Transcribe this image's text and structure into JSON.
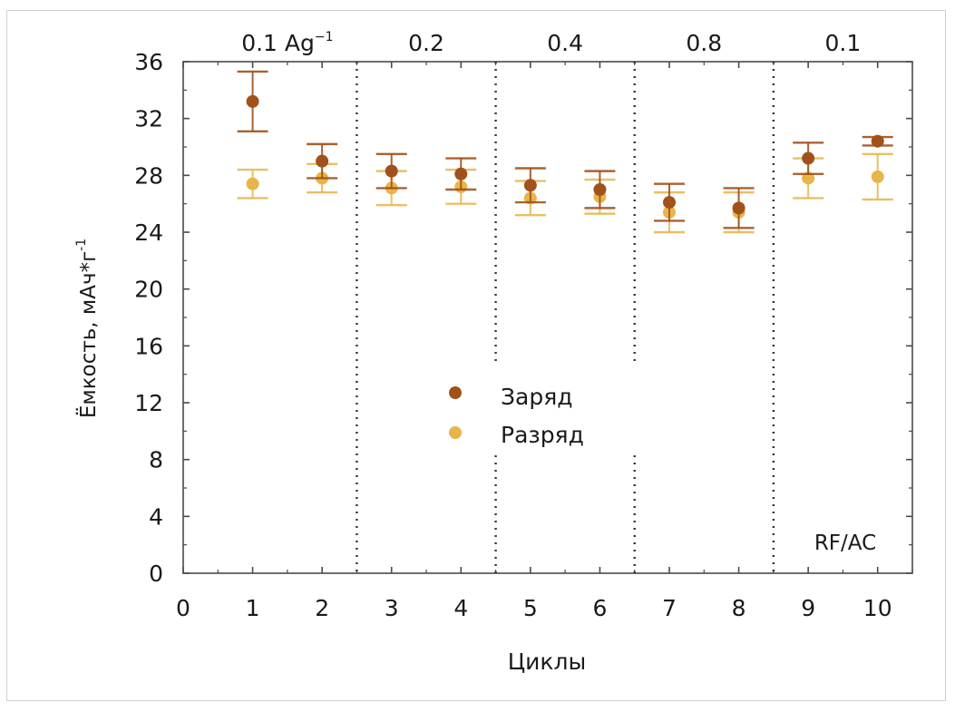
{
  "chart_data": {
    "type": "scatter",
    "xlabel": "Циклы",
    "ylabel": "Ёмкость, мАч*г",
    "ylabel_sup": "-1",
    "xlim": [
      0,
      10.5
    ],
    "ylim": [
      0,
      36
    ],
    "xticks": [
      "0",
      "1",
      "2",
      "3",
      "4",
      "5",
      "6",
      "7",
      "8",
      "9",
      "10"
    ],
    "yticks": [
      "0",
      "4",
      "8",
      "12",
      "16",
      "20",
      "24",
      "28",
      "32",
      "36"
    ],
    "segments": [
      {
        "label": "0.1 Ag",
        "sup": "−1",
        "center": 1.5
      },
      {
        "label": "0.2",
        "center": 3.5
      },
      {
        "label": "0.4",
        "center": 5.5
      },
      {
        "label": "0.8",
        "center": 7.5
      },
      {
        "label": "0.1",
        "center": 9.5
      }
    ],
    "dividers": [
      2.5,
      4.5,
      6.5,
      8.5
    ],
    "annotation": "RF/AC",
    "series": [
      {
        "name": "Заряд",
        "color": "#a0521a",
        "x": [
          1,
          2,
          3,
          4,
          5,
          6,
          7,
          8,
          9,
          10
        ],
        "y": [
          33.2,
          29.0,
          28.3,
          28.1,
          27.3,
          27.0,
          26.1,
          25.7,
          29.2,
          30.4
        ],
        "err": [
          2.1,
          1.2,
          1.2,
          1.1,
          1.2,
          1.3,
          1.3,
          1.4,
          1.1,
          0.3
        ]
      },
      {
        "name": "Разряд",
        "color": "#e8b54a",
        "x": [
          1,
          2,
          3,
          4,
          5,
          6,
          7,
          8,
          9,
          10
        ],
        "y": [
          27.4,
          27.8,
          27.1,
          27.2,
          26.4,
          26.5,
          25.4,
          25.4,
          27.8,
          27.9
        ],
        "err": [
          1.0,
          1.0,
          1.2,
          1.2,
          1.2,
          1.2,
          1.4,
          1.4,
          1.4,
          1.6
        ]
      }
    ]
  }
}
